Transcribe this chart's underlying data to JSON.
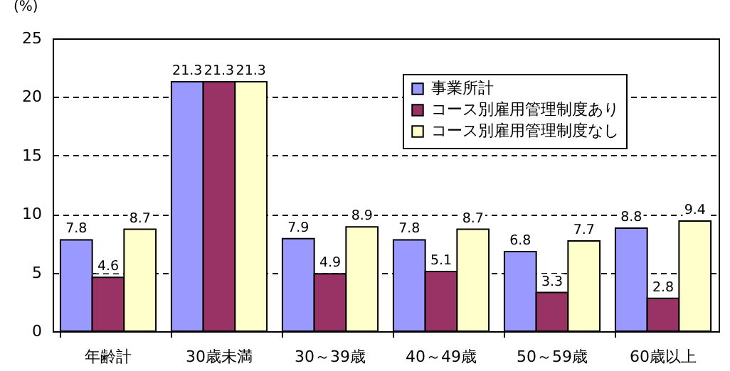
{
  "chart_data": {
    "type": "bar",
    "ylabel": "(%)",
    "categories": [
      "年齢計",
      "30歳未満",
      "30～39歳",
      "40～49歳",
      "50～59歳",
      "60歳以上"
    ],
    "series": [
      {
        "name": "事業所計",
        "color": "#9999ff",
        "values": [
          7.8,
          21.3,
          7.9,
          7.8,
          6.8,
          8.8
        ]
      },
      {
        "name": "コース別雇用管理制度あり",
        "color": "#993366",
        "values": [
          4.6,
          21.3,
          4.9,
          5.1,
          3.3,
          2.8
        ]
      },
      {
        "name": "コース別雇用管理制度なし",
        "color": "#ffffcc",
        "values": [
          8.7,
          21.3,
          8.9,
          8.7,
          7.7,
          9.4
        ]
      }
    ],
    "ylim": [
      0,
      25
    ],
    "yticks": [
      0,
      5,
      10,
      15,
      20,
      25
    ],
    "grid": "y",
    "legend": "top right",
    "data_labels": true
  }
}
